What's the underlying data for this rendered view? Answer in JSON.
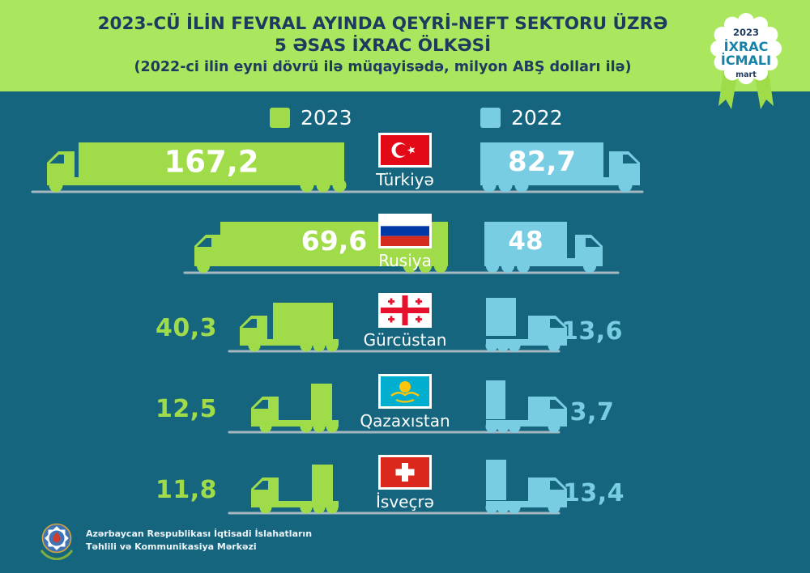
{
  "header": {
    "title_line1": "2023-CÜ İLİN FEVRAL AYINDA QEYRİ-NEFT SEKTORU ÜZRƏ",
    "title_line2": "5 ƏSAS İXRAC ÖLKƏSİ",
    "subtitle": "(2022-ci ilin eyni dövrü ilə müqayisədə, milyon ABŞ dolları ilə)"
  },
  "badge": {
    "year": "2023",
    "line1": "İXRAC",
    "line2": "İCMALI",
    "month": "mart"
  },
  "legend": {
    "items": [
      {
        "label": "2023",
        "color": "#a0dc4a"
      },
      {
        "label": "2022",
        "color": "#79cde3"
      }
    ]
  },
  "chart_data": {
    "type": "bar",
    "title": "2023-cü ilin fevral ayında qeyri-neft sektoru üzrə 5 əsas ixrac ölkəsi",
    "subtitle": "2022-ci ilin eyni dövrü ilə müqayisədə",
    "unit": "milyon ABŞ dolları",
    "categories": [
      "Türkiyə",
      "Rusiya",
      "Gürcüstan",
      "Qazaxıstan",
      "İsveçrə"
    ],
    "series": [
      {
        "name": "2023",
        "values": [
          167.2,
          69.6,
          40.3,
          12.5,
          11.8
        ]
      },
      {
        "name": "2022",
        "values": [
          82.7,
          48,
          13.6,
          3.7,
          13.4
        ]
      }
    ],
    "legend_position": "top",
    "grid": false
  },
  "rows": [
    {
      "country": "Türkiyə",
      "flag": "turkiye-flag",
      "v2023": "167,2",
      "v2022": "82,7"
    },
    {
      "country": "Rusiya",
      "flag": "rusiya-flag",
      "v2023": "69,6",
      "v2022": "48"
    },
    {
      "country": "Gürcüstan",
      "flag": "gurcustan-flag",
      "v2023": "40,3",
      "v2022": "13,6"
    },
    {
      "country": "Qazaxıstan",
      "flag": "qazaxistan-flag",
      "v2023": "12,5",
      "v2022": "3,7"
    },
    {
      "country": "İsveçrə",
      "flag": "isvecre-flag",
      "v2023": "11,8",
      "v2022": "13,4"
    }
  ],
  "footer": {
    "line1": "Azərbaycan Respublikası İqtisadi İslahatların",
    "line2": "Təhlili və Kommunikasiya Mərkəzi"
  },
  "colors": {
    "header_bg": "#abe75e",
    "background": "#15657f",
    "green_2023": "#a0dc4a",
    "blue_2022": "#79cde3",
    "title_text": "#1e3a5f",
    "road": "#a5b8c0",
    "badge_accent": "#1583a8",
    "value_text_inside": "#ffffff"
  }
}
